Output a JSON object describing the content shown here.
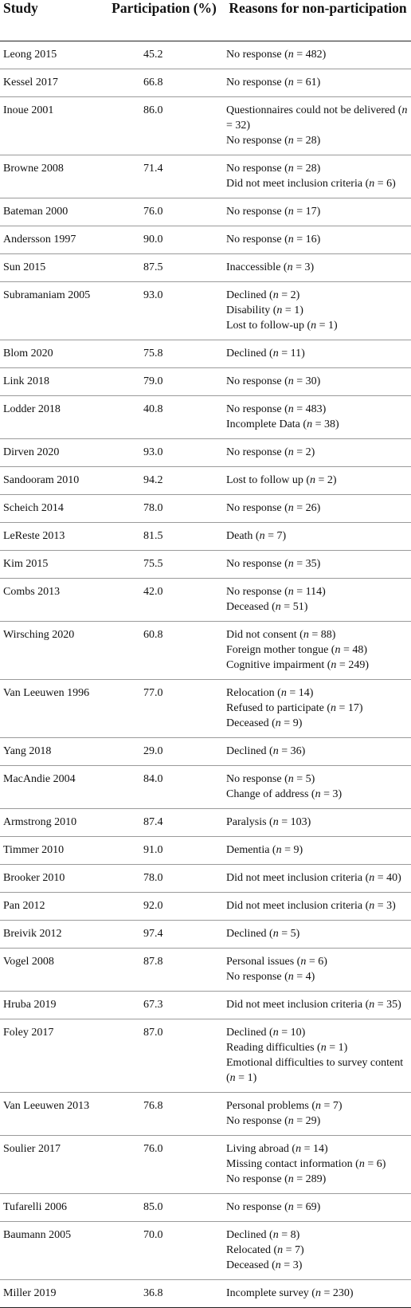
{
  "headers": {
    "study": "Study",
    "participation": "Participation (%)",
    "reasons": "Reasons for non-participation"
  },
  "rows": [
    {
      "study": "Leong 2015",
      "participation": "45.2",
      "reasons": [
        "No response (n = 482)"
      ]
    },
    {
      "study": "Kessel 2017",
      "participation": "66.8",
      "reasons": [
        "No response (n = 61)"
      ]
    },
    {
      "study": "Inoue 2001",
      "participation": "86.0",
      "reasons": [
        "Questionnaires could not be delivered (n = 32)",
        "No response (n = 28)"
      ]
    },
    {
      "study": "Browne 2008",
      "participation": "71.4",
      "reasons": [
        "No response (n = 28)",
        "Did not meet inclusion criteria (n = 6)"
      ]
    },
    {
      "study": "Bateman 2000",
      "participation": "76.0",
      "reasons": [
        "No response (n = 17)"
      ]
    },
    {
      "study": "Andersson 1997",
      "participation": "90.0",
      "reasons": [
        "No response (n = 16)"
      ]
    },
    {
      "study": "Sun 2015",
      "participation": "87.5",
      "reasons": [
        "Inaccessible (n = 3)"
      ]
    },
    {
      "study": "Subramaniam 2005",
      "participation": "93.0",
      "reasons": [
        "Declined (n = 2)",
        "Disability (n = 1)",
        "Lost to follow-up (n = 1)"
      ]
    },
    {
      "study": "Blom 2020",
      "participation": "75.8",
      "reasons": [
        "Declined (n = 11)"
      ]
    },
    {
      "study": "Link 2018",
      "participation": "79.0",
      "reasons": [
        "No response (n = 30)"
      ]
    },
    {
      "study": "Lodder 2018",
      "participation": "40.8",
      "reasons": [
        "No response (n = 483)",
        "Incomplete Data (n = 38)"
      ]
    },
    {
      "study": "Dirven 2020",
      "participation": "93.0",
      "reasons": [
        "No response (n = 2)"
      ]
    },
    {
      "study": "Sandooram 2010",
      "participation": "94.2",
      "reasons": [
        "Lost to follow up (n = 2)"
      ]
    },
    {
      "study": "Scheich 2014",
      "participation": "78.0",
      "reasons": [
        "No response (n = 26)"
      ]
    },
    {
      "study": "LeReste 2013",
      "participation": "81.5",
      "reasons": [
        "Death (n = 7)"
      ]
    },
    {
      "study": "Kim 2015",
      "participation": "75.5",
      "reasons": [
        "No response (n = 35)"
      ]
    },
    {
      "study": "Combs 2013",
      "participation": "42.0",
      "reasons": [
        "No response (n = 114)",
        "Deceased (n = 51)"
      ]
    },
    {
      "study": "Wirsching 2020",
      "participation": "60.8",
      "reasons": [
        "Did not consent (n = 88)",
        "Foreign mother tongue (n = 48)",
        "Cognitive impairment (n = 249)"
      ]
    },
    {
      "study": "Van Leeuwen 1996",
      "participation": "77.0",
      "reasons": [
        "Relocation (n = 14)",
        "Refused to participate (n = 17)",
        "Deceased (n = 9)"
      ]
    },
    {
      "study": "Yang 2018",
      "participation": "29.0",
      "reasons": [
        "Declined (n = 36)"
      ]
    },
    {
      "study": "MacAndie 2004",
      "participation": "84.0",
      "reasons": [
        "No response (n = 5)",
        "Change of address (n = 3)"
      ]
    },
    {
      "study": "Armstrong 2010",
      "participation": "87.4",
      "reasons": [
        "Paralysis (n = 103)"
      ]
    },
    {
      "study": "Timmer 2010",
      "participation": "91.0",
      "reasons": [
        "Dementia (n = 9)"
      ]
    },
    {
      "study": "Brooker 2010",
      "participation": "78.0",
      "reasons": [
        "Did not meet inclusion criteria (n = 40)"
      ]
    },
    {
      "study": "Pan 2012",
      "participation": "92.0",
      "reasons": [
        "Did not meet inclusion criteria (n = 3)"
      ]
    },
    {
      "study": "Breivik 2012",
      "participation": "97.4",
      "reasons": [
        "Declined (n = 5)"
      ]
    },
    {
      "study": "Vogel 2008",
      "participation": "87.8",
      "reasons": [
        "Personal issues (n = 6)",
        "No response (n = 4)"
      ]
    },
    {
      "study": "Hruba 2019",
      "participation": "67.3",
      "reasons": [
        "Did not meet inclusion criteria (n = 35)"
      ]
    },
    {
      "study": "Foley 2017",
      "participation": "87.0",
      "reasons": [
        "Declined (n = 10)",
        "Reading difficulties (n = 1)",
        "Emotional difficulties to survey content (n = 1)"
      ]
    },
    {
      "study": "Van Leeuwen 2013",
      "participation": "76.8",
      "reasons": [
        "Personal problems (n = 7)",
        "No response (n = 29)"
      ]
    },
    {
      "study": "Soulier 2017",
      "participation": "76.0",
      "reasons": [
        "Living abroad (n = 14)",
        "Missing contact information (n = 6)",
        "No response (n = 289)"
      ]
    },
    {
      "study": "Tufarelli 2006",
      "participation": "85.0",
      "reasons": [
        "No response (n = 69)"
      ]
    },
    {
      "study": "Baumann 2005",
      "participation": "70.0",
      "reasons": [
        "Declined (n = 8)",
        "Relocated (n = 7)",
        "Deceased (n = 3)"
      ]
    },
    {
      "study": "Miller 2019",
      "participation": "36.8",
      "reasons": [
        "Incomplete survey (n = 230)"
      ]
    }
  ]
}
